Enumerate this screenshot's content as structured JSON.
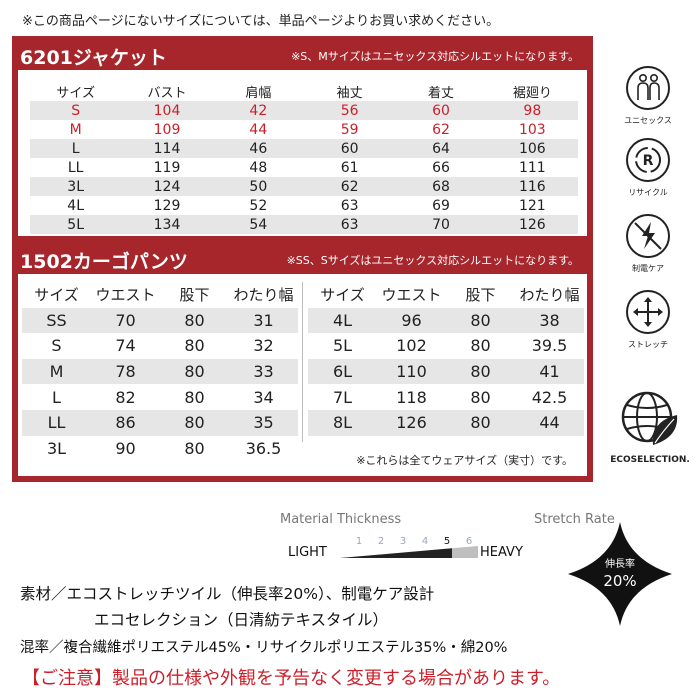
{
  "top_note": "※この商品ページにないサイズについては、単品ページよりお買い求めください。",
  "jacket": {
    "title": "6201ジャケット",
    "note": "※S、Mサイズはユニセックス対応シルエットになります。",
    "headers": [
      "サイズ",
      "バスト",
      "肩幅",
      "袖丈",
      "着丈",
      "裾廻り"
    ],
    "rows": [
      [
        "S",
        "104",
        "42",
        "56",
        "60",
        "98"
      ],
      [
        "M",
        "109",
        "44",
        "59",
        "62",
        "103"
      ],
      [
        "L",
        "114",
        "46",
        "60",
        "64",
        "106"
      ],
      [
        "LL",
        "119",
        "48",
        "61",
        "66",
        "111"
      ],
      [
        "3L",
        "124",
        "50",
        "62",
        "68",
        "116"
      ],
      [
        "4L",
        "129",
        "52",
        "63",
        "69",
        "121"
      ],
      [
        "5L",
        "134",
        "54",
        "63",
        "70",
        "126"
      ]
    ]
  },
  "pants": {
    "title": "1502カーゴパンツ",
    "note": "※SS、Sサイズはユニセックス対応シルエットになります。",
    "headers": [
      "サイズ",
      "ウエスト",
      "股下",
      "わたり幅"
    ],
    "left_rows": [
      [
        "SS",
        "70",
        "80",
        "31"
      ],
      [
        "S",
        "74",
        "80",
        "32"
      ],
      [
        "M",
        "78",
        "80",
        "33"
      ],
      [
        "L",
        "82",
        "80",
        "34"
      ],
      [
        "LL",
        "86",
        "80",
        "35"
      ],
      [
        "3L",
        "90",
        "80",
        "36.5"
      ]
    ],
    "right_rows": [
      [
        "4L",
        "96",
        "80",
        "38"
      ],
      [
        "5L",
        "102",
        "80",
        "39.5"
      ],
      [
        "6L",
        "110",
        "80",
        "41"
      ],
      [
        "7L",
        "118",
        "80",
        "42.5"
      ],
      [
        "8L",
        "126",
        "80",
        "44"
      ]
    ],
    "footnote": "※これらは全てウェアサイズ（実寸）です。"
  },
  "icons": {
    "unisex": "ユニセックス",
    "recycle": "リサイクル",
    "antistatic": "制電ケア",
    "stretch": "ストレッチ",
    "eco": "ECOSELECTION."
  },
  "thickness": {
    "title": "Material Thickness",
    "light": "LIGHT",
    "heavy": "HEAVY",
    "scale": [
      "1",
      "2",
      "3",
      "4",
      "5",
      "6"
    ],
    "selected": 5
  },
  "stretch": {
    "title": "Stretch Rate",
    "label": "伸長率",
    "value": "20%"
  },
  "material": {
    "line1": "素材／エコストレッチツイル（伸長率20%）、制電ケア設計",
    "line2": "エコセレクション（日清紡テキスタイル）",
    "line3": "混率／複合繊維ポリエステル45%・リサイクルポリエステル35%・綿20%"
  },
  "warning": "【ご注意】製品の仕様や外観を予告なく変更する場合があります。"
}
